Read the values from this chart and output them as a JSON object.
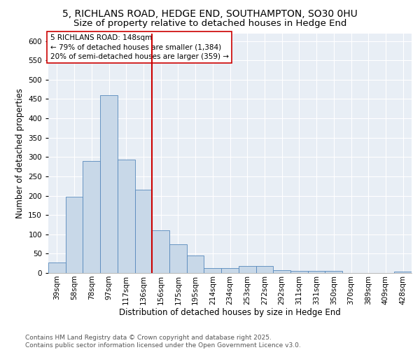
{
  "title_line1": "5, RICHLANS ROAD, HEDGE END, SOUTHAMPTON, SO30 0HU",
  "title_line2": "Size of property relative to detached houses in Hedge End",
  "xlabel": "Distribution of detached houses by size in Hedge End",
  "ylabel": "Number of detached properties",
  "categories": [
    "39sqm",
    "58sqm",
    "78sqm",
    "97sqm",
    "117sqm",
    "136sqm",
    "156sqm",
    "175sqm",
    "195sqm",
    "214sqm",
    "234sqm",
    "253sqm",
    "272sqm",
    "292sqm",
    "311sqm",
    "331sqm",
    "350sqm",
    "370sqm",
    "389sqm",
    "409sqm",
    "428sqm"
  ],
  "values": [
    28,
    197,
    290,
    460,
    293,
    215,
    110,
    75,
    45,
    12,
    12,
    18,
    18,
    8,
    5,
    5,
    6,
    0,
    0,
    0,
    3
  ],
  "bar_color": "#c8d8e8",
  "bar_edge_color": "#5588bb",
  "vline_x": 5.5,
  "vline_color": "#cc0000",
  "annotation_text": "5 RICHLANS ROAD: 148sqm\n← 79% of detached houses are smaller (1,384)\n20% of semi-detached houses are larger (359) →",
  "annotation_box_color": "#ffffff",
  "annotation_box_edge": "#cc0000",
  "ylim": [
    0,
    620
  ],
  "bg_color": "#e8eef5",
  "grid_color": "#ffffff",
  "footer": "Contains HM Land Registry data © Crown copyright and database right 2025.\nContains public sector information licensed under the Open Government Licence v3.0.",
  "title_fontsize": 10,
  "subtitle_fontsize": 9.5,
  "axis_label_fontsize": 8.5,
  "tick_fontsize": 7.5,
  "annotation_fontsize": 7.5,
  "footer_fontsize": 6.5
}
